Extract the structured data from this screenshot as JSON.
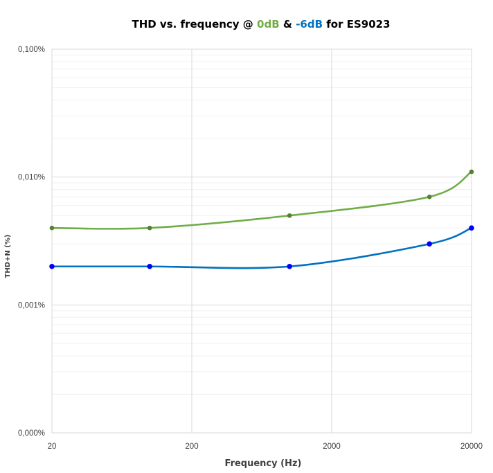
{
  "chart_data": {
    "type": "line",
    "title": {
      "parts": [
        {
          "text": "THD vs. frequency @ ",
          "color": "#000000"
        },
        {
          "text": "0dB",
          "color": "#70AD47"
        },
        {
          "text": " & ",
          "color": "#000000"
        },
        {
          "text": "-6dB",
          "color": "#0070C0"
        },
        {
          "text": " for ES9023",
          "color": "#000000"
        }
      ]
    },
    "xlabel": "Frequency (Hz)",
    "ylabel": "THD+N (%)",
    "x_scale": "log",
    "y_scale": "log",
    "xlim": [
      20,
      20000
    ],
    "ylim": [
      0.0001,
      0.1
    ],
    "x_ticks": [
      {
        "value": 20,
        "label": "20"
      },
      {
        "value": 200,
        "label": "200"
      },
      {
        "value": 2000,
        "label": "2000"
      },
      {
        "value": 20000,
        "label": "20000"
      }
    ],
    "y_ticks": [
      {
        "value": 0.0001,
        "label": "0,000%"
      },
      {
        "value": 0.001,
        "label": "0,001%"
      },
      {
        "value": 0.01,
        "label": "0,010%"
      },
      {
        "value": 0.1,
        "label": "0,100%"
      }
    ],
    "grid": true,
    "legend": "none",
    "series": [
      {
        "line_color": "#70AD47",
        "marker_color": "#548235",
        "x": [
          20,
          100,
          1000,
          10000,
          20000
        ],
        "y": [
          0.004,
          0.004,
          0.005,
          0.007,
          0.011
        ]
      },
      {
        "line_color": "#0070C0",
        "marker_color": "#0000FF",
        "x": [
          20,
          100,
          1000,
          10000,
          20000
        ],
        "y": [
          0.002,
          0.002,
          0.002,
          0.003,
          0.004
        ]
      }
    ]
  }
}
